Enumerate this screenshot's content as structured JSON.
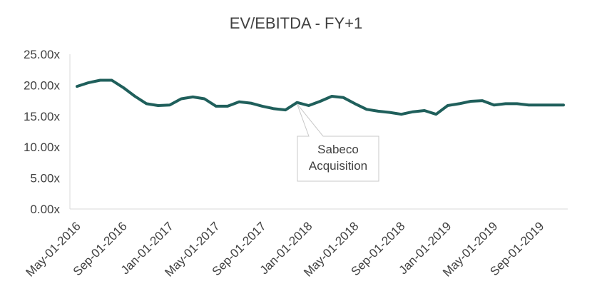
{
  "chart_data": {
    "type": "line",
    "title": "EV/EBITDA - FY+1",
    "xlabel": "",
    "ylabel": "",
    "ylim": [
      0,
      25
    ],
    "yticks": [
      "0.00x",
      "5.00x",
      "10.00x",
      "15.00x",
      "20.00x",
      "25.00x"
    ],
    "ytick_values": [
      0,
      5,
      10,
      15,
      20,
      25
    ],
    "xtick_labels": [
      "May-01-2016",
      "Sep-01-2016",
      "Jan-01-2017",
      "May-01-2017",
      "Sep-01-2017",
      "Jan-01-2018",
      "May-01-2018",
      "Sep-01-2018",
      "Jan-01-2019",
      "May-01-2019",
      "Sep-01-2019"
    ],
    "grid": false,
    "line_color": "#1f5f5b",
    "series": [
      {
        "x": [
          "2016-05",
          "2016-06",
          "2016-07",
          "2016-08",
          "2016-09",
          "2016-10",
          "2016-11",
          "2016-12",
          "2017-01",
          "2017-02",
          "2017-03",
          "2017-04",
          "2017-05",
          "2017-06",
          "2017-07",
          "2017-08",
          "2017-09",
          "2017-10",
          "2017-11",
          "2017-12",
          "2018-01",
          "2018-02",
          "2018-03",
          "2018-04",
          "2018-05",
          "2018-06",
          "2018-07",
          "2018-08",
          "2018-09",
          "2018-10",
          "2018-11",
          "2018-12",
          "2019-01",
          "2019-02",
          "2019-03",
          "2019-04",
          "2019-05",
          "2019-06",
          "2019-07",
          "2019-08",
          "2019-09",
          "2019-10",
          "2019-11"
        ],
        "values": [
          19.8,
          20.4,
          20.8,
          20.8,
          19.6,
          18.2,
          17.0,
          16.7,
          16.8,
          17.8,
          18.1,
          17.8,
          16.6,
          16.6,
          17.3,
          17.1,
          16.6,
          16.2,
          16.0,
          17.2,
          16.7,
          17.4,
          18.2,
          18.0,
          17.0,
          16.1,
          15.8,
          15.6,
          15.3,
          15.7,
          15.9,
          15.3,
          16.7,
          17.0,
          17.4,
          17.5,
          16.8,
          17.0,
          17.0,
          16.8,
          16.8,
          16.8,
          16.8
        ]
      }
    ],
    "annotations": [
      {
        "lines": [
          "Sabeco",
          "Acquisition"
        ],
        "x": "2017-12"
      }
    ]
  }
}
